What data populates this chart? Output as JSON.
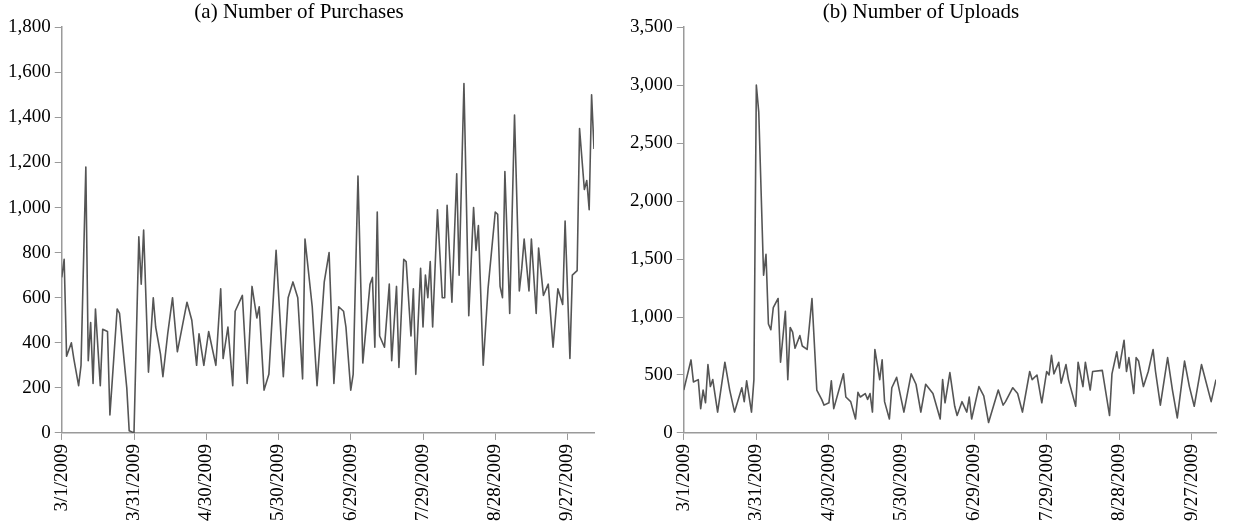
{
  "chart_data": [
    {
      "type": "line",
      "title": "(a) Number of Purchases",
      "xlim": [
        "2009-03-01",
        "2009-10-08"
      ],
      "xticks": [
        {
          "value": "2009-03-01",
          "label": "3/1/2009"
        },
        {
          "value": "2009-03-31",
          "label": "3/31/2009"
        },
        {
          "value": "2009-04-30",
          "label": "4/30/2009"
        },
        {
          "value": "2009-05-30",
          "label": "5/30/2009"
        },
        {
          "value": "2009-06-29",
          "label": "6/29/2009"
        },
        {
          "value": "2009-07-29",
          "label": "7/29/2009"
        },
        {
          "value": "2009-08-28",
          "label": "8/28/2009"
        },
        {
          "value": "2009-09-27",
          "label": "9/27/2009"
        }
      ],
      "ylim": [
        0,
        1800
      ],
      "yticks": [
        0,
        200,
        400,
        600,
        800,
        {
          "value": 1000,
          "label": "1,000"
        },
        {
          "value": 1200,
          "label": "1,200"
        },
        {
          "value": 1400,
          "label": "1,400"
        },
        {
          "value": 1600,
          "label": "1,600"
        },
        {
          "value": 1800,
          "label": "1,800"
        }
      ],
      "series": [
        {
          "color": "#555555",
          "x": [
            "2009-03-01",
            "2009-03-02",
            "2009-03-03",
            "2009-03-05",
            "2009-03-06",
            "2009-03-08",
            "2009-03-09",
            "2009-03-11",
            "2009-03-12",
            "2009-03-13",
            "2009-03-14",
            "2009-03-15",
            "2009-03-17",
            "2009-03-18",
            "2009-03-20",
            "2009-03-21",
            "2009-03-24",
            "2009-03-25",
            "2009-03-28",
            "2009-03-29",
            "2009-03-31",
            "2009-04-02",
            "2009-04-03",
            "2009-04-04",
            "2009-04-06",
            "2009-04-08",
            "2009-04-09",
            "2009-04-11",
            "2009-04-12",
            "2009-04-14",
            "2009-04-16",
            "2009-04-18",
            "2009-04-22",
            "2009-04-24",
            "2009-04-26",
            "2009-04-27",
            "2009-04-29",
            "2009-05-01",
            "2009-05-04",
            "2009-05-06",
            "2009-05-07",
            "2009-05-09",
            "2009-05-11",
            "2009-05-12",
            "2009-05-15",
            "2009-05-17",
            "2009-05-19",
            "2009-05-21",
            "2009-05-22",
            "2009-05-24",
            "2009-05-26",
            "2009-05-29",
            "2009-06-01",
            "2009-06-03",
            "2009-06-05",
            "2009-06-07",
            "2009-06-09",
            "2009-06-10",
            "2009-06-13",
            "2009-06-15",
            "2009-06-18",
            "2009-06-20",
            "2009-06-22",
            "2009-06-24",
            "2009-06-26",
            "2009-06-27",
            "2009-06-29",
            "2009-06-30",
            "2009-07-02",
            "2009-07-04",
            "2009-07-07",
            "2009-07-08",
            "2009-07-09",
            "2009-07-10",
            "2009-07-11",
            "2009-07-13",
            "2009-07-15",
            "2009-07-16",
            "2009-07-18",
            "2009-07-19",
            "2009-07-21",
            "2009-07-22",
            "2009-07-24",
            "2009-07-25",
            "2009-07-26",
            "2009-07-28",
            "2009-07-29",
            "2009-07-30",
            "2009-07-31",
            "2009-08-01",
            "2009-08-02",
            "2009-08-04",
            "2009-08-06",
            "2009-08-07",
            "2009-08-08",
            "2009-08-10",
            "2009-08-12",
            "2009-08-13",
            "2009-08-15",
            "2009-08-17",
            "2009-08-19",
            "2009-08-20",
            "2009-08-21",
            "2009-08-23",
            "2009-08-25",
            "2009-08-28",
            "2009-08-29",
            "2009-08-30",
            "2009-08-31",
            "2009-09-01",
            "2009-09-03",
            "2009-09-05",
            "2009-09-07",
            "2009-09-08",
            "2009-09-09",
            "2009-09-11",
            "2009-09-12",
            "2009-09-14",
            "2009-09-15",
            "2009-09-17",
            "2009-09-19",
            "2009-09-21",
            "2009-09-23",
            "2009-09-25",
            "2009-09-26",
            "2009-09-28",
            "2009-09-29",
            "2009-10-01",
            "2009-10-02",
            "2009-10-04",
            "2009-10-05",
            "2009-10-06",
            "2009-10-07",
            "2009-10-08"
          ],
          "values": [
            690,
            770,
            340,
            400,
            330,
            210,
            300,
            1180,
            320,
            490,
            220,
            550,
            210,
            460,
            450,
            80,
            550,
            530,
            200,
            10,
            0,
            870,
            660,
            900,
            270,
            600,
            470,
            350,
            250,
            440,
            600,
            360,
            580,
            500,
            300,
            440,
            300,
            450,
            300,
            640,
            330,
            470,
            210,
            540,
            610,
            220,
            650,
            510,
            560,
            190,
            260,
            810,
            250,
            600,
            670,
            600,
            240,
            860,
            560,
            210,
            670,
            800,
            220,
            560,
            540,
            470,
            190,
            260,
            1140,
            310,
            660,
            690,
            380,
            980,
            430,
            380,
            660,
            320,
            650,
            290,
            770,
            760,
            430,
            640,
            260,
            730,
            470,
            700,
            600,
            760,
            470,
            990,
            600,
            600,
            1010,
            580,
            1150,
            700,
            1550,
            520,
            1000,
            810,
            920,
            300,
            640,
            980,
            970,
            650,
            600,
            1160,
            530,
            1410,
            630,
            730,
            860,
            630,
            860,
            530,
            820,
            610,
            660,
            380,
            640,
            570,
            940,
            330,
            700,
            720,
            1350,
            1080,
            1120,
            990,
            1500,
            1260
          ]
        }
      ]
    },
    {
      "type": "line",
      "title": "(b) Number of Uploads",
      "xlim": [
        "2009-03-01",
        "2009-10-07"
      ],
      "xticks": [
        {
          "value": "2009-03-01",
          "label": "3/1/2009"
        },
        {
          "value": "2009-03-31",
          "label": "3/31/2009"
        },
        {
          "value": "2009-04-30",
          "label": "4/30/2009"
        },
        {
          "value": "2009-05-30",
          "label": "5/30/2009"
        },
        {
          "value": "2009-06-29",
          "label": "6/29/2009"
        },
        {
          "value": "2009-07-29",
          "label": "7/29/2009"
        },
        {
          "value": "2009-08-28",
          "label": "8/28/2009"
        },
        {
          "value": "2009-09-27",
          "label": "9/27/2009"
        }
      ],
      "ylim": [
        0,
        3500
      ],
      "yticks": [
        0,
        500,
        {
          "value": 1000,
          "label": "1,000"
        },
        {
          "value": 1500,
          "label": "1,500"
        },
        {
          "value": 2000,
          "label": "2,000"
        },
        {
          "value": 2500,
          "label": "2,500"
        },
        {
          "value": 3000,
          "label": "3,000"
        },
        {
          "value": 3500,
          "label": "3,500"
        }
      ],
      "series": [
        {
          "color": "#555555",
          "x": [
            "2009-03-01",
            "2009-03-04",
            "2009-03-05",
            "2009-03-07",
            "2009-03-08",
            "2009-03-09",
            "2009-03-10",
            "2009-03-11",
            "2009-03-12",
            "2009-03-13",
            "2009-03-15",
            "2009-03-18",
            "2009-03-20",
            "2009-03-22",
            "2009-03-25",
            "2009-03-26",
            "2009-03-27",
            "2009-03-29",
            "2009-03-30",
            "2009-03-31",
            "2009-04-01",
            "2009-04-03",
            "2009-04-04",
            "2009-04-05",
            "2009-04-06",
            "2009-04-07",
            "2009-04-09",
            "2009-04-10",
            "2009-04-12",
            "2009-04-13",
            "2009-04-14",
            "2009-04-15",
            "2009-04-16",
            "2009-04-18",
            "2009-04-19",
            "2009-04-21",
            "2009-04-23",
            "2009-04-25",
            "2009-04-27",
            "2009-04-28",
            "2009-04-30",
            "2009-05-01",
            "2009-05-02",
            "2009-05-06",
            "2009-05-07",
            "2009-05-09",
            "2009-05-11",
            "2009-05-12",
            "2009-05-13",
            "2009-05-15",
            "2009-05-16",
            "2009-05-17",
            "2009-05-18",
            "2009-05-19",
            "2009-05-21",
            "2009-05-22",
            "2009-05-23",
            "2009-05-25",
            "2009-05-26",
            "2009-05-28",
            "2009-05-31",
            "2009-06-03",
            "2009-06-05",
            "2009-06-07",
            "2009-06-09",
            "2009-06-12",
            "2009-06-15",
            "2009-06-16",
            "2009-06-17",
            "2009-06-19",
            "2009-06-21",
            "2009-06-22",
            "2009-06-24",
            "2009-06-26",
            "2009-06-27",
            "2009-06-28",
            "2009-07-01",
            "2009-07-03",
            "2009-07-05",
            "2009-07-09",
            "2009-07-11",
            "2009-07-12",
            "2009-07-15",
            "2009-07-17",
            "2009-07-19",
            "2009-07-22",
            "2009-07-23",
            "2009-07-25",
            "2009-07-27",
            "2009-07-29",
            "2009-07-30",
            "2009-07-31",
            "2009-08-01",
            "2009-08-03",
            "2009-08-04",
            "2009-08-06",
            "2009-08-07",
            "2009-08-10",
            "2009-08-11",
            "2009-08-13",
            "2009-08-14",
            "2009-08-16",
            "2009-08-17",
            "2009-08-21",
            "2009-08-24",
            "2009-08-25",
            "2009-08-27",
            "2009-08-28",
            "2009-08-30",
            "2009-08-31",
            "2009-09-01",
            "2009-09-03",
            "2009-09-04",
            "2009-09-05",
            "2009-09-07",
            "2009-09-09",
            "2009-09-11",
            "2009-09-12",
            "2009-09-14",
            "2009-09-17",
            "2009-09-19",
            "2009-09-21",
            "2009-09-24",
            "2009-09-26",
            "2009-09-28",
            "2009-10-01",
            "2009-10-05",
            "2009-10-07"
          ],
          "values": [
            370,
            630,
            440,
            460,
            210,
            370,
            260,
            590,
            400,
            460,
            180,
            610,
            370,
            180,
            390,
            270,
            450,
            180,
            460,
            3000,
            2770,
            1360,
            1540,
            940,
            890,
            1080,
            1160,
            610,
            1050,
            460,
            910,
            870,
            730,
            840,
            750,
            720,
            1160,
            370,
            290,
            240,
            260,
            450,
            210,
            510,
            310,
            270,
            120,
            350,
            310,
            340,
            290,
            340,
            180,
            720,
            460,
            630,
            270,
            120,
            390,
            480,
            180,
            510,
            420,
            180,
            420,
            340,
            120,
            460,
            260,
            520,
            230,
            150,
            270,
            180,
            310,
            120,
            400,
            320,
            90,
            370,
            240,
            270,
            390,
            340,
            180,
            530,
            460,
            500,
            260,
            530,
            500,
            670,
            510,
            610,
            430,
            590,
            460,
            230,
            610,
            400,
            610,
            370,
            530,
            540,
            150,
            510,
            700,
            560,
            800,
            530,
            650,
            340,
            650,
            620,
            400,
            530,
            720,
            530,
            240,
            650,
            370,
            130,
            620,
            400,
            230,
            590,
            270,
            460
          ]
        }
      ]
    }
  ]
}
